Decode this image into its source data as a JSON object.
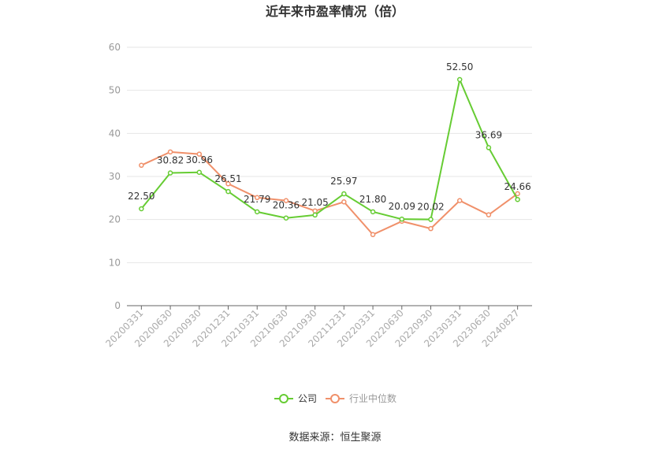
{
  "chart_data": {
    "type": "line",
    "title": "近年来市盈率情况（倍）",
    "categories": [
      "20200331",
      "20200630",
      "20200930",
      "20201231",
      "20210331",
      "20210630",
      "20210930",
      "20211231",
      "20220331",
      "20220630",
      "20220930",
      "20230331",
      "20230630",
      "20240827"
    ],
    "series": [
      {
        "name": "公司",
        "color": "#66cc33",
        "values": [
          22.5,
          30.82,
          30.96,
          26.51,
          21.79,
          20.36,
          21.05,
          25.97,
          21.8,
          20.09,
          20.02,
          52.5,
          36.69,
          24.66
        ],
        "show_labels": true
      },
      {
        "name": "行业中位数",
        "color": "#f0906a",
        "values": [
          32.6,
          35.7,
          35.2,
          28.3,
          25.1,
          24.4,
          22.0,
          24.1,
          16.5,
          19.6,
          17.9,
          24.4,
          21.1,
          26.0
        ],
        "show_labels": false
      }
    ],
    "ylim": [
      0,
      60
    ],
    "yticks": [
      0,
      10,
      20,
      30,
      40,
      50,
      60
    ],
    "grid": true,
    "legend_position": "bottom-center",
    "source": "数据来源：恒生聚源"
  }
}
